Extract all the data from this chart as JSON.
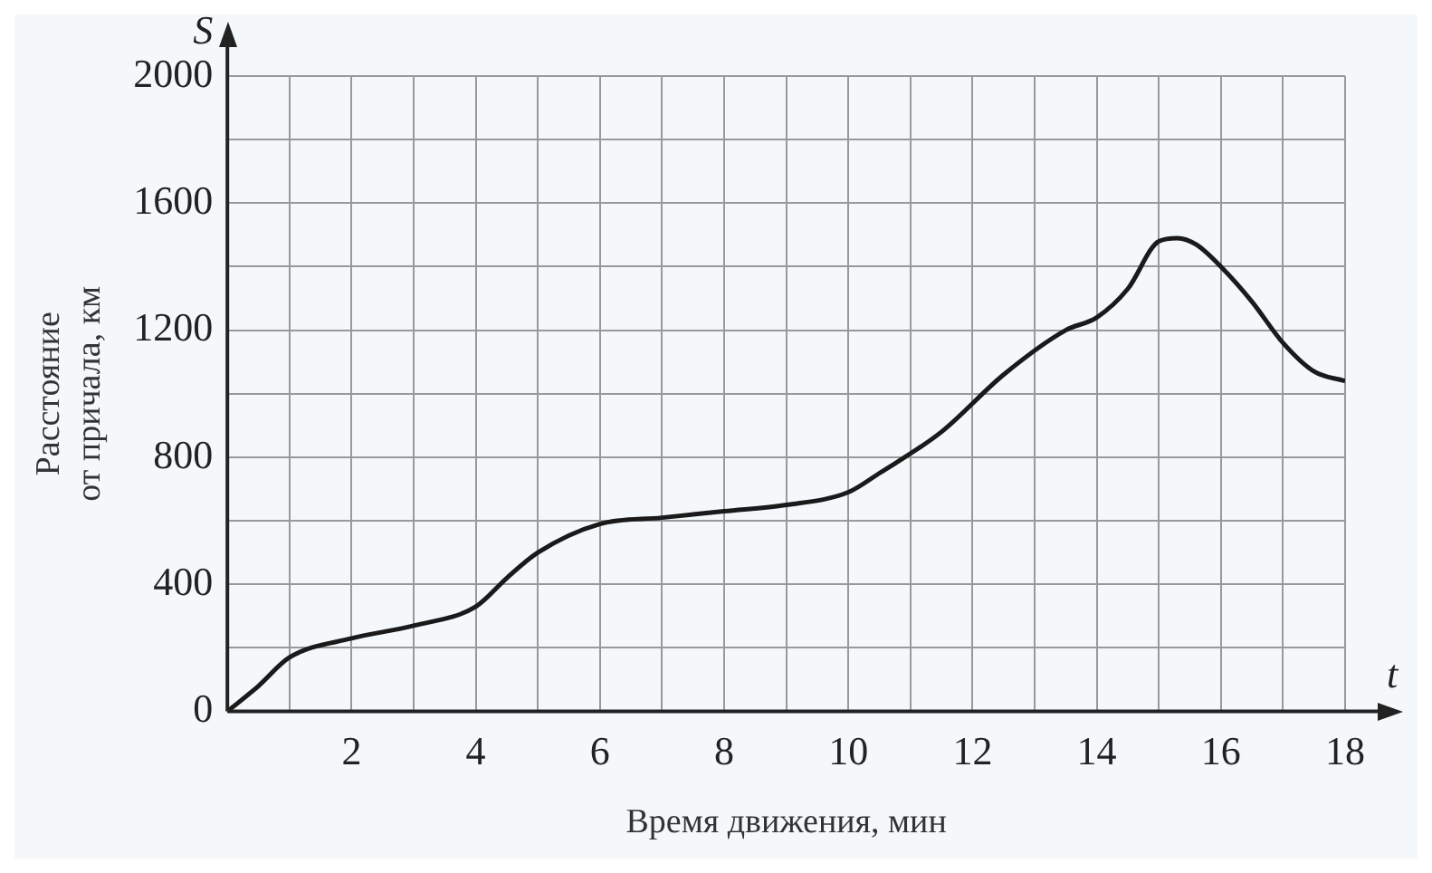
{
  "chart_data": {
    "type": "line",
    "xlabel": "Время движения, мин",
    "ylabel": "Расстояние от причала, км",
    "annotations": [
      "S",
      "t"
    ],
    "x": [
      0,
      0.5,
      1,
      2,
      3,
      4,
      4.5,
      5,
      6,
      7,
      8,
      9,
      10,
      10.5,
      11.5,
      12.5,
      13.5,
      14,
      14.5,
      15,
      15.3,
      15.6,
      16,
      16.5,
      17,
      17.5,
      18
    ],
    "series": [
      {
        "color": "#1a1a1a",
        "values": [
          0,
          80,
          170,
          230,
          270,
          330,
          420,
          500,
          590,
          610,
          630,
          650,
          690,
          750,
          880,
          1060,
          1200,
          1240,
          1330,
          1480,
          1490,
          1470,
          1400,
          1290,
          1160,
          1070,
          1040
        ]
      }
    ],
    "xlim": [
      0,
      18
    ],
    "ylim": [
      0,
      2000
    ],
    "xticks": [
      {
        "value": 1,
        "label": null
      },
      2,
      {
        "value": 3,
        "label": null
      },
      4,
      {
        "value": 5,
        "label": null
      },
      6,
      {
        "value": 7,
        "label": null
      },
      8,
      {
        "value": 9,
        "label": null
      },
      10,
      {
        "value": 11,
        "label": null
      },
      12,
      {
        "value": 13,
        "label": null
      },
      14,
      {
        "value": 15,
        "label": null
      },
      16,
      {
        "value": 17,
        "label": null
      },
      18
    ],
    "yticks": [
      0,
      {
        "value": 200,
        "label": null
      },
      400,
      {
        "value": 600,
        "label": null
      },
      800,
      {
        "value": 1000,
        "label": null
      },
      1200,
      {
        "value": 1400,
        "label": null
      },
      1600,
      {
        "value": 1800,
        "label": null
      },
      2000
    ],
    "grid": true,
    "legend": false,
    "marker": "none",
    "line_style": "solid"
  }
}
